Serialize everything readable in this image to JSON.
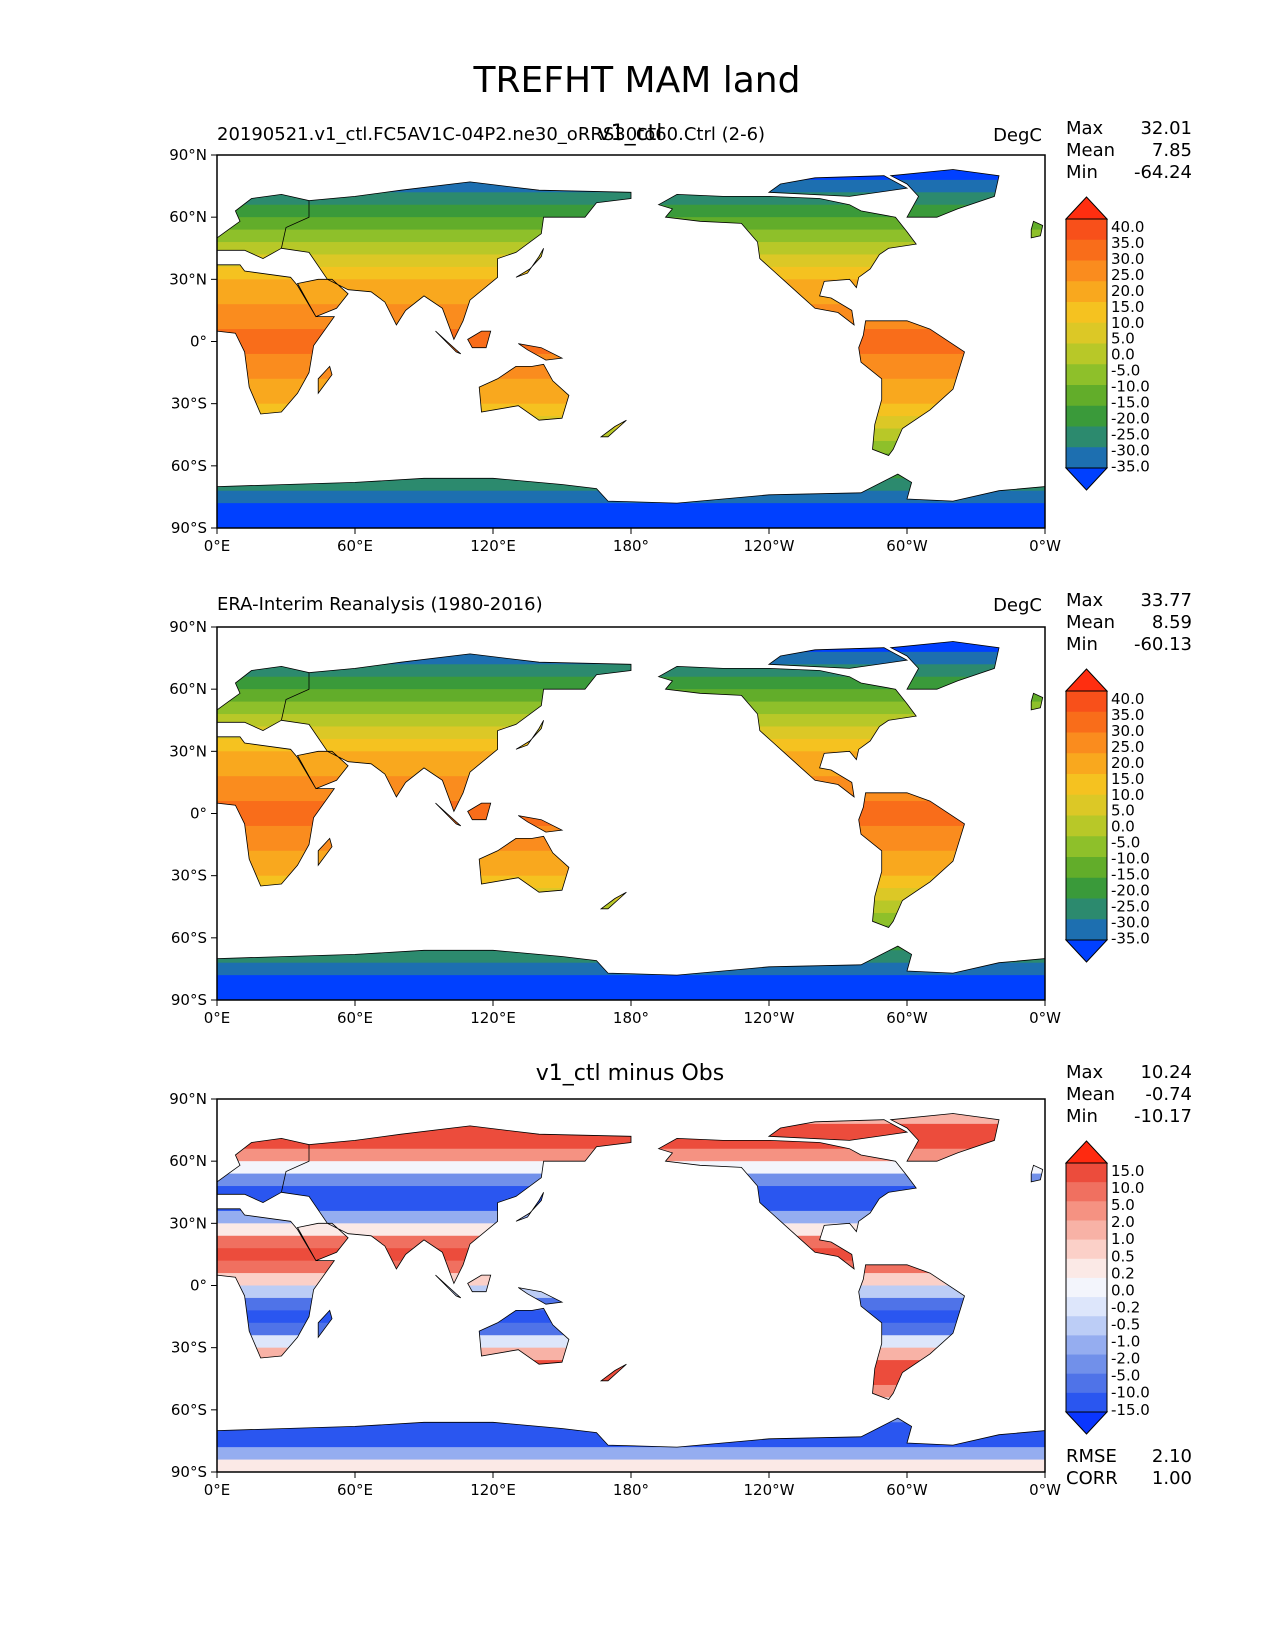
{
  "figure": {
    "title": "TREFHT MAM land"
  },
  "axes": {
    "lon_ticks": [
      "0°E",
      "60°E",
      "120°E",
      "180°",
      "120°W",
      "60°W",
      "0°W"
    ],
    "lat_ticks": [
      "90°N",
      "60°N",
      "30°N",
      "0°",
      "30°S",
      "60°S",
      "90°S"
    ]
  },
  "colors": {
    "test_colormap": [
      "#0040ff",
      "#1d6fb0",
      "#2c8a6e",
      "#3a9a3a",
      "#62ad2a",
      "#8ec02a",
      "#b8c828",
      "#dcc826",
      "#f5c220",
      "#f9a81e",
      "#fa8c1e",
      "#f96d1a",
      "#f8501a",
      "#ff2e10"
    ],
    "diff_colormap": [
      "#0a36ff",
      "#2a56f0",
      "#4f73e8",
      "#7190ea",
      "#95adf0",
      "#bccdf6",
      "#dde6fb",
      "#f3f5fc",
      "#fbe9e6",
      "#fbd0c8",
      "#f8b2a6",
      "#f59282",
      "#f07060",
      "#ec4c3c",
      "#ff2a10"
    ]
  },
  "chart_data": [
    {
      "type": "heatmap",
      "panel": "test",
      "left_title": "20190521.v1_ctl.FC5AV1C-04P2.ne30_oRRS30to60.Ctrl (2-6)",
      "center_title": "v1_ctl",
      "units": "DegC",
      "stats": {
        "Max": "32.01",
        "Mean": "7.85",
        "Min": "-64.24"
      },
      "colorbar_labels": [
        "40.0",
        "35.0",
        "30.0",
        "25.0",
        "20.0",
        "15.0",
        "10.0",
        "5.0",
        "0.0",
        "-5.0",
        "-10.0",
        "-15.0",
        "-20.0",
        "-25.0",
        "-30.0",
        "-35.0"
      ],
      "xlim": [
        0,
        360
      ],
      "ylim": [
        -90,
        90
      ]
    },
    {
      "type": "heatmap",
      "panel": "reference",
      "left_title": "ERA-Interim Reanalysis (1980-2016)",
      "center_title": "",
      "units": "DegC",
      "stats": {
        "Max": "33.77",
        "Mean": "8.59",
        "Min": "-60.13"
      },
      "colorbar_labels": [
        "40.0",
        "35.0",
        "30.0",
        "25.0",
        "20.0",
        "15.0",
        "10.0",
        "5.0",
        "0.0",
        "-5.0",
        "-10.0",
        "-15.0",
        "-20.0",
        "-25.0",
        "-30.0",
        "-35.0"
      ],
      "xlim": [
        0,
        360
      ],
      "ylim": [
        -90,
        90
      ]
    },
    {
      "type": "heatmap",
      "panel": "difference",
      "left_title": "",
      "center_title": "v1_ctl minus Obs",
      "units": "",
      "stats": {
        "Max": "10.24",
        "Mean": "-0.74",
        "Min": "-10.17"
      },
      "extra_stats": {
        "RMSE": "2.10",
        "CORR": "1.00"
      },
      "colorbar_labels": [
        "15.0",
        "10.0",
        "5.0",
        "2.0",
        "1.0",
        "0.5",
        "0.2",
        "0.0",
        "-0.2",
        "-0.5",
        "-1.0",
        "-2.0",
        "-5.0",
        "-10.0",
        "-15.0"
      ],
      "xlim": [
        0,
        360
      ],
      "ylim": [
        -90,
        90
      ]
    }
  ]
}
